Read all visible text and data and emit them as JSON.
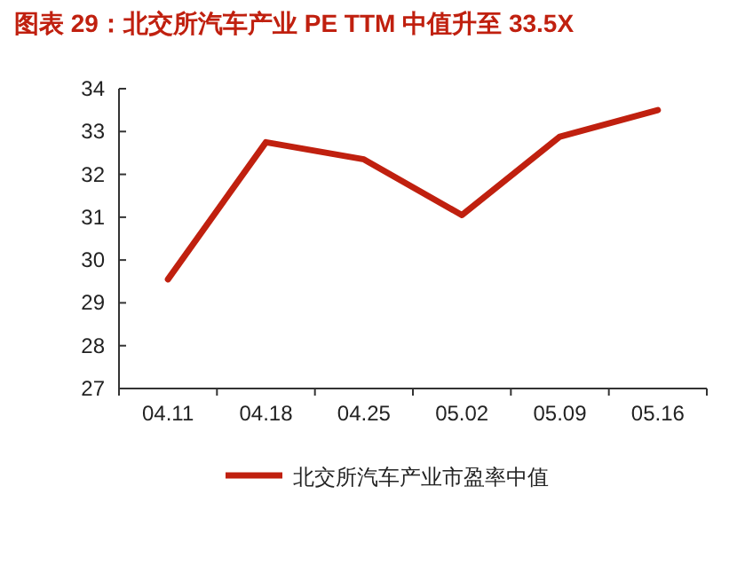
{
  "chart_data": {
    "type": "line",
    "title": "图表 29：北交所汽车产业 PE TTM 中值升至 33.5X",
    "categories": [
      "04.11",
      "04.18",
      "04.25",
      "05.02",
      "05.09",
      "05.16"
    ],
    "series": [
      {
        "name": "北交所汽车产业市盈率中值",
        "color": "#c0200f",
        "values": [
          29.55,
          32.75,
          32.35,
          31.05,
          32.88,
          33.5
        ]
      }
    ],
    "ylim": [
      27,
      34
    ],
    "yticks": [
      27,
      28,
      29,
      30,
      31,
      32,
      33,
      34
    ],
    "grid": false,
    "legend": "bottom",
    "marker": "none",
    "line_style": "solid"
  }
}
